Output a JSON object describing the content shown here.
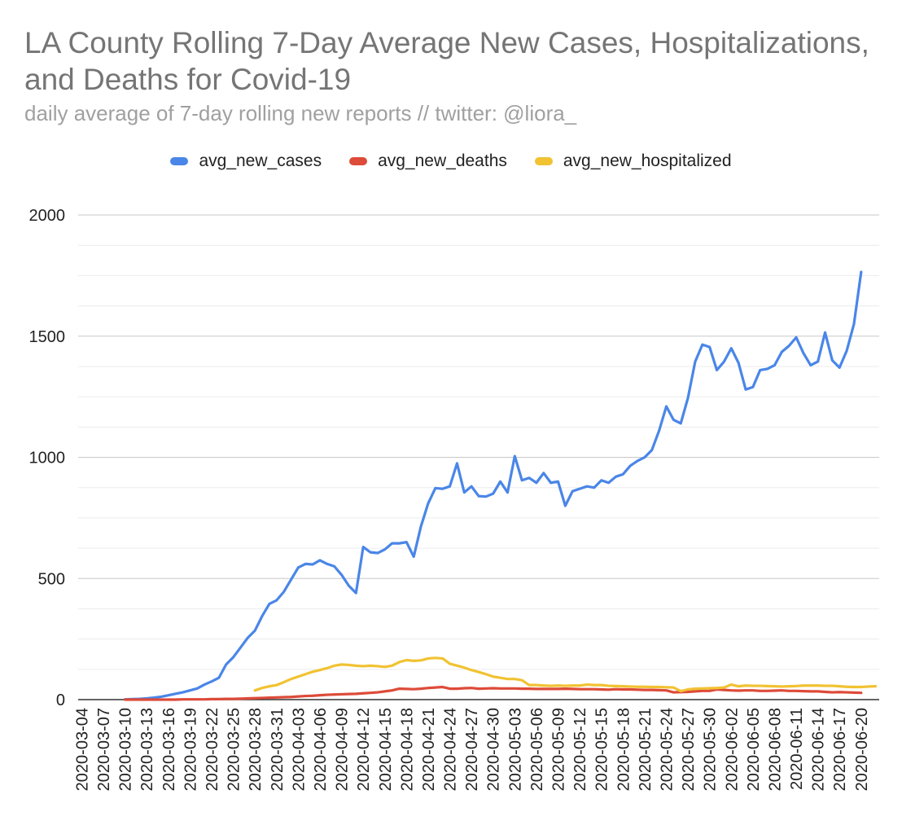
{
  "chart_data": {
    "type": "line",
    "title": "LA County Rolling 7-Day Average New Cases, Hospitalizations, and Deaths for Covid-19",
    "subtitle": "daily average of 7-day rolling new reports // twitter: @liora_",
    "xlabel": "",
    "ylabel": "",
    "ylim": [
      0,
      2000
    ],
    "yticks": [
      0,
      500,
      1000,
      1500,
      2000
    ],
    "minor_gridlines": true,
    "legend_position": "top-center",
    "x_start": "2020-03-04",
    "x_count": 111,
    "x_tick_labels": [
      "2020-03-04",
      "2020-03-07",
      "2020-03-10",
      "2020-03-13",
      "2020-03-16",
      "2020-03-19",
      "2020-03-22",
      "2020-03-25",
      "2020-03-28",
      "2020-03-31",
      "2020-04-03",
      "2020-04-06",
      "2020-04-09",
      "2020-04-12",
      "2020-04-15",
      "2020-04-18",
      "2020-04-21",
      "2020-04-24",
      "2020-04-27",
      "2020-04-30",
      "2020-05-03",
      "2020-05-06",
      "2020-05-09",
      "2020-05-12",
      "2020-05-15",
      "2020-05-18",
      "2020-05-21",
      "2020-05-24",
      "2020-05-27",
      "2020-05-30",
      "2020-06-02",
      "2020-06-05",
      "2020-06-08",
      "2020-06-11",
      "2020-06-14",
      "2020-06-17",
      "2020-06-20"
    ],
    "series": [
      {
        "name": "avg_new_cases",
        "color": "#4a86e8",
        "start_index": 6,
        "values": [
          1,
          2,
          3,
          5,
          8,
          12,
          18,
          24,
          30,
          38,
          46,
          62,
          75,
          90,
          145,
          175,
          215,
          255,
          285,
          345,
          395,
          410,
          445,
          495,
          545,
          560,
          558,
          575,
          560,
          550,
          515,
          470,
          440,
          630,
          608,
          605,
          620,
          645,
          645,
          650,
          590,
          715,
          810,
          873,
          870,
          880,
          975,
          855,
          880,
          840,
          838,
          850,
          900,
          855,
          1005,
          905,
          915,
          895,
          935,
          895,
          900,
          800,
          860,
          870,
          880,
          875,
          905,
          895,
          920,
          930,
          965,
          985,
          1000,
          1030,
          1110,
          1210,
          1155,
          1140,
          1245,
          1395,
          1465,
          1455,
          1360,
          1395,
          1450,
          1390,
          1280,
          1290,
          1360,
          1365,
          1380,
          1435,
          1460,
          1495,
          1430,
          1380,
          1395,
          1515,
          1400,
          1370,
          1440,
          1550,
          1765
        ]
      },
      {
        "name": "avg_new_deaths",
        "color": "#dd4b39",
        "start_index": 6,
        "values": [
          0,
          0,
          0,
          0,
          0,
          0,
          0,
          0,
          1,
          1,
          1,
          1,
          2,
          2,
          3,
          3,
          4,
          5,
          6,
          7,
          8,
          9,
          10,
          11,
          13,
          15,
          16,
          18,
          20,
          21,
          22,
          23,
          24,
          26,
          28,
          30,
          34,
          38,
          45,
          44,
          43,
          45,
          48,
          50,
          52,
          45,
          45,
          47,
          48,
          45,
          46,
          47,
          46,
          46,
          46,
          45,
          45,
          44,
          44,
          44,
          44,
          45,
          44,
          43,
          43,
          43,
          42,
          41,
          43,
          42,
          42,
          41,
          40,
          40,
          39,
          38,
          30,
          31,
          32,
          34,
          36,
          36,
          42,
          40,
          38,
          37,
          38,
          38,
          36,
          36,
          37,
          38,
          36,
          36,
          35,
          34,
          34,
          32,
          30,
          31,
          30,
          29,
          28
        ]
      },
      {
        "name": "avg_new_hospitalized",
        "color": "#f1c232",
        "start_index": 24,
        "values": [
          38,
          48,
          55,
          60,
          72,
          85,
          95,
          105,
          115,
          122,
          130,
          140,
          145,
          143,
          140,
          138,
          140,
          138,
          135,
          140,
          155,
          163,
          160,
          162,
          170,
          172,
          170,
          148,
          140,
          132,
          122,
          114,
          105,
          95,
          90,
          85,
          85,
          80,
          60,
          60,
          58,
          57,
          58,
          57,
          58,
          58,
          62,
          60,
          60,
          57,
          56,
          55,
          54,
          53,
          53,
          52,
          52,
          51,
          50,
          35,
          42,
          45,
          46,
          47,
          48,
          50,
          62,
          55,
          58,
          57,
          57,
          56,
          55,
          54,
          55,
          56,
          58,
          58,
          58,
          57,
          57,
          55,
          53,
          52,
          52,
          54,
          55
        ]
      }
    ]
  }
}
